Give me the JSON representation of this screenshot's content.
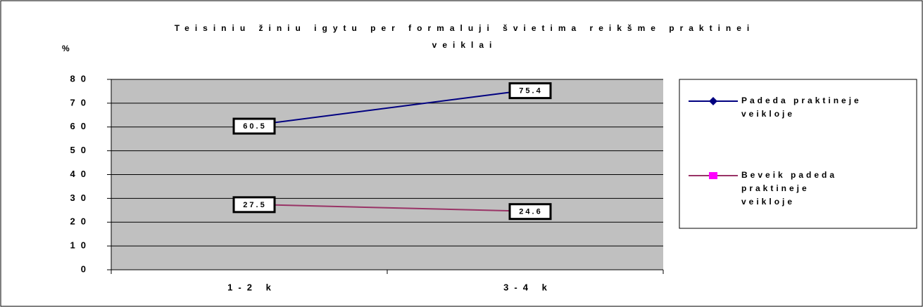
{
  "chart_data": {
    "type": "line",
    "title": "Teisiniu žiniu igytu per formaluji švietima reikšme praktinei veiklai",
    "y_label": "%",
    "categories": [
      "1-2 k",
      "3-4 k"
    ],
    "series": [
      {
        "name": "Padeda praktineje veikloje",
        "color": "#000080",
        "marker": "diamond",
        "marker_color": "#000080",
        "values": [
          60.5,
          75.4
        ]
      },
      {
        "name": "Beveik padeda praktineje veikloje",
        "color": "#993366",
        "marker": "square",
        "marker_color": "#ff00ff",
        "values": [
          27.5,
          24.6
        ]
      }
    ],
    "ylim": [
      0,
      80
    ],
    "yticks": [
      0,
      10,
      20,
      30,
      40,
      50,
      60,
      70,
      80
    ],
    "grid": true,
    "plot_background": "#c0c0c0",
    "legend": "right"
  }
}
